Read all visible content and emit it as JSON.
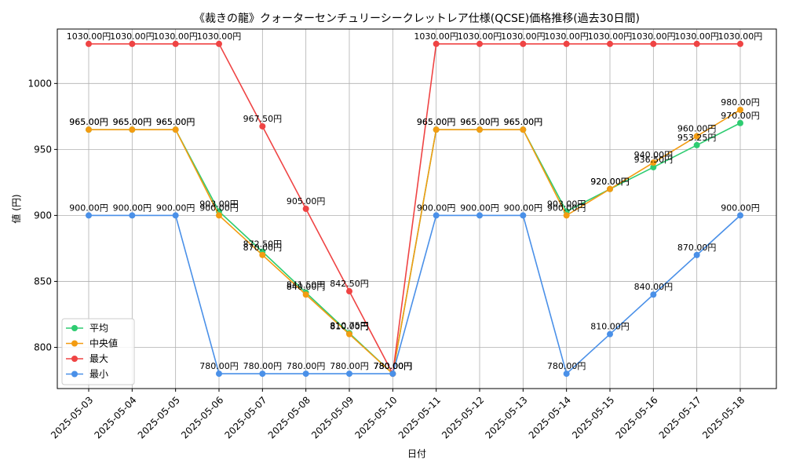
{
  "chart_data": {
    "type": "line",
    "title": "《裁きの龍》クォーターセンチュリーシークレットレア仕様(QCSE)価格推移(過去30日間)",
    "xlabel": "日付",
    "ylabel": "値 (円)",
    "categories": [
      "2025-05-03",
      "2025-05-04",
      "2025-05-05",
      "2025-05-06",
      "2025-05-07",
      "2025-05-08",
      "2025-05-09",
      "2025-05-10",
      "2025-05-11",
      "2025-05-12",
      "2025-05-13",
      "2025-05-14",
      "2025-05-15",
      "2025-05-16",
      "2025-05-17",
      "2025-05-18"
    ],
    "ylim": [
      768.75,
      1041.25
    ],
    "yticks": [
      "800",
      "850",
      "900",
      "950",
      "1000"
    ],
    "ytick_values": [
      800,
      850,
      900,
      950,
      1000
    ],
    "grid": true,
    "legend_position": "lower-left",
    "series": [
      {
        "name": "平均",
        "color": "#2ecc71",
        "values": [
          965,
          965,
          965,
          903,
          872.5,
          841.5,
          810.75,
          780,
          965,
          965,
          965,
          903,
          920,
          936.5,
          953.25,
          970
        ],
        "labels": [
          "965.00円",
          "965.00円",
          "965.00円",
          "903.00円",
          "872.50円",
          "841.50円",
          "810.75円",
          "780.00円",
          "965.00円",
          "965.00円",
          "965.00円",
          "903.00円",
          "920.00円",
          "936.50円",
          "953.25円",
          "970.00円"
        ]
      },
      {
        "name": "中央値",
        "color": "#f39c12",
        "values": [
          965,
          965,
          965,
          900,
          870,
          840,
          810,
          780,
          965,
          965,
          965,
          900,
          920,
          940,
          960,
          980
        ],
        "labels": [
          "965.00円",
          "965.00円",
          "965.00円",
          "900.00円",
          "870.00円",
          "840.00円",
          "810.00円",
          "780.00円",
          "965.00円",
          "965.00円",
          "965.00円",
          "900.00円",
          "920.00円",
          "940.00円",
          "960.00円",
          "980.00円"
        ]
      },
      {
        "name": "最大",
        "color": "#ef4444",
        "values": [
          1030,
          1030,
          1030,
          1030,
          967.5,
          905,
          842.5,
          780,
          1030,
          1030,
          1030,
          1030,
          1030,
          1030,
          1030,
          1030
        ],
        "labels": [
          "1030.00円",
          "1030.00円",
          "1030.00円",
          "1030.00円",
          "967.50円",
          "905.00円",
          "842.50円",
          "780.00円",
          "1030.00円",
          "1030.00円",
          "1030.00円",
          "1030.00円",
          "1030.00円",
          "1030.00円",
          "1030.00円",
          "1030.00円"
        ]
      },
      {
        "name": "最小",
        "color": "#4a90e8",
        "values": [
          900,
          900,
          900,
          780,
          780,
          780,
          780,
          780,
          900,
          900,
          900,
          780,
          810,
          840,
          870,
          900
        ],
        "labels": [
          "900.00円",
          "900.00円",
          "900.00円",
          "780.00円",
          "780.00円",
          "780.00円",
          "780.00円",
          "780.00円",
          "900.00円",
          "900.00円",
          "900.00円",
          "780.00円",
          "810.00円",
          "840.00円",
          "870.00円",
          "900.00円"
        ]
      }
    ]
  }
}
